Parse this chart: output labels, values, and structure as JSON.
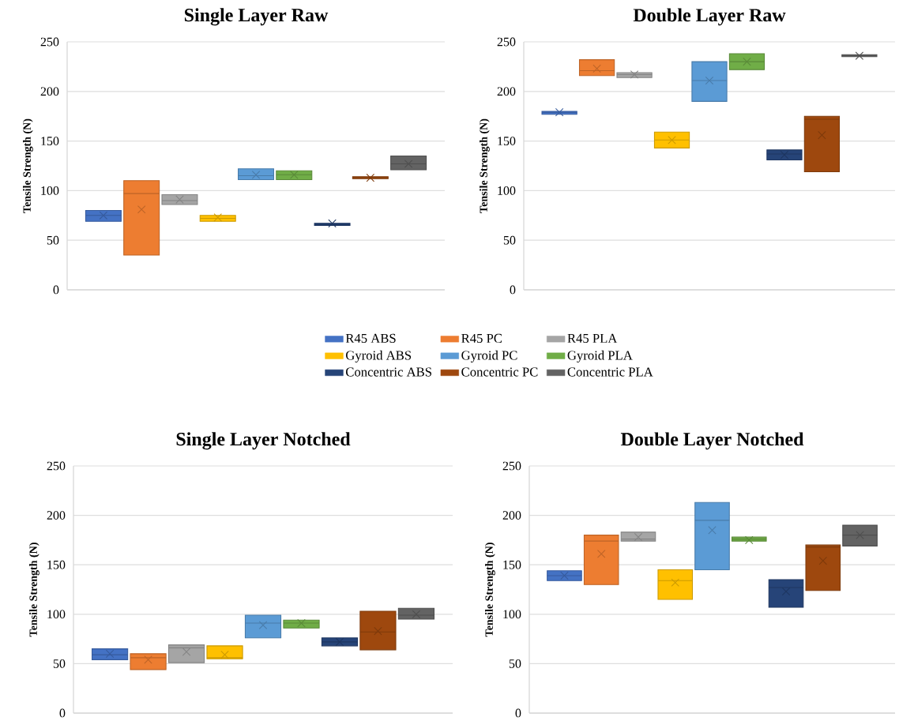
{
  "chart_data": [
    {
      "type": "box",
      "title": "Single Layer Raw",
      "ylabel": "Tensile Strength (N)",
      "categories": [
        null
      ],
      "ylim": [
        0,
        250
      ],
      "yticks": [
        0,
        50,
        100,
        150,
        200,
        250
      ],
      "grid": "y",
      "legend": "bottom",
      "series": [
        {
          "name": "R45 ABS",
          "color": "#4472c4",
          "boxes": [
            {
              "low": 69,
              "q1": 69,
              "median": 75,
              "q3": 80,
              "high": 80,
              "mean": 75
            }
          ]
        },
        {
          "name": "R45 PC",
          "color": "#ed7d31",
          "boxes": [
            {
              "low": 35,
              "q1": 35,
              "median": 97,
              "q3": 110,
              "high": 110,
              "mean": 81
            }
          ]
        },
        {
          "name": "R45 PLA",
          "color": "#a5a5a5",
          "boxes": [
            {
              "low": 86,
              "q1": 86,
              "median": 90,
              "q3": 96,
              "high": 96,
              "mean": 91
            }
          ]
        },
        {
          "name": "Gyroid ABS",
          "color": "#ffc000",
          "boxes": [
            {
              "low": 69,
              "q1": 69,
              "median": 72,
              "q3": 75,
              "high": 75,
              "mean": 73
            }
          ]
        },
        {
          "name": "Gyroid PC",
          "color": "#5b9bd5",
          "boxes": [
            {
              "low": 111,
              "q1": 111,
              "median": 115,
              "q3": 122,
              "high": 122,
              "mean": 116
            }
          ]
        },
        {
          "name": "Gyroid PLA",
          "color": "#70ad47",
          "boxes": [
            {
              "low": 111,
              "q1": 111,
              "median": 116,
              "q3": 120,
              "high": 120,
              "mean": 116
            }
          ]
        },
        {
          "name": "Concentric ABS",
          "color": "#264478",
          "boxes": [
            {
              "low": 65,
              "q1": 65,
              "median": 66,
              "q3": 67,
              "high": 67,
              "mean": 67
            }
          ]
        },
        {
          "name": "Concentric PC",
          "color": "#9e480e",
          "boxes": [
            {
              "low": 112,
              "q1": 112,
              "median": 113,
              "q3": 114,
              "high": 114,
              "mean": 113
            }
          ]
        },
        {
          "name": "Concentric PLA",
          "color": "#636363",
          "boxes": [
            {
              "low": 121,
              "q1": 121,
              "median": 127,
              "q3": 135,
              "high": 135,
              "mean": 127
            }
          ]
        }
      ]
    },
    {
      "type": "box",
      "title": "Double Layer Raw",
      "ylabel": "Tensile Strength (N)",
      "categories": [
        null
      ],
      "ylim": [
        0,
        250
      ],
      "yticks": [
        0,
        50,
        100,
        150,
        200,
        250
      ],
      "grid": "y",
      "series": [
        {
          "color": "#4472c4",
          "boxes": [
            {
              "low": 177,
              "q1": 177,
              "median": 179,
              "q3": 180,
              "high": 180,
              "mean": 179
            }
          ]
        },
        {
          "color": "#ed7d31",
          "boxes": [
            {
              "low": 216,
              "q1": 216,
              "median": 221,
              "q3": 232,
              "high": 232,
              "mean": 223
            }
          ]
        },
        {
          "color": "#a5a5a5",
          "boxes": [
            {
              "low": 214,
              "q1": 214,
              "median": 217,
              "q3": 219,
              "high": 219,
              "mean": 217
            }
          ]
        },
        {
          "color": "#ffc000",
          "boxes": [
            {
              "low": 143,
              "q1": 143,
              "median": 151,
              "q3": 159,
              "high": 159,
              "mean": 151
            }
          ]
        },
        {
          "color": "#5b9bd5",
          "boxes": [
            {
              "low": 190,
              "q1": 190,
              "median": 211,
              "q3": 230,
              "high": 230,
              "mean": 211
            }
          ]
        },
        {
          "color": "#70ad47",
          "boxes": [
            {
              "low": 222,
              "q1": 222,
              "median": 230,
              "q3": 238,
              "high": 238,
              "mean": 230
            }
          ]
        },
        {
          "color": "#264478",
          "boxes": [
            {
              "low": 131,
              "q1": 131,
              "median": 137,
              "q3": 141,
              "high": 141,
              "mean": 136
            }
          ]
        },
        {
          "color": "#9e480e",
          "boxes": [
            {
              "low": 119,
              "q1": 119,
              "median": 172,
              "q3": 175,
              "high": 175,
              "mean": 156
            }
          ]
        },
        {
          "color": "#636363",
          "boxes": [
            {
              "low": 235,
              "q1": 235,
              "median": 236,
              "q3": 237,
              "high": 237,
              "mean": 236
            }
          ]
        }
      ]
    },
    {
      "type": "box",
      "title": "Single Layer Notched",
      "ylabel": "Tensile Strength (N)",
      "categories": [
        null
      ],
      "ylim": [
        0,
        250
      ],
      "yticks": [
        0,
        50,
        100,
        150,
        200,
        250
      ],
      "grid": "y",
      "series": [
        {
          "color": "#4472c4",
          "boxes": [
            {
              "low": 54,
              "q1": 54,
              "median": 59,
              "q3": 65,
              "high": 65,
              "mean": 60
            }
          ]
        },
        {
          "color": "#ed7d31",
          "boxes": [
            {
              "low": 44,
              "q1": 44,
              "median": 56,
              "q3": 60,
              "high": 60,
              "mean": 54
            }
          ]
        },
        {
          "color": "#a5a5a5",
          "boxes": [
            {
              "low": 51,
              "q1": 51,
              "median": 66,
              "q3": 69,
              "high": 69,
              "mean": 62
            }
          ]
        },
        {
          "color": "#ffc000",
          "boxes": [
            {
              "low": 55,
              "q1": 55,
              "median": 56,
              "q3": 68,
              "high": 68,
              "mean": 59
            }
          ]
        },
        {
          "color": "#5b9bd5",
          "boxes": [
            {
              "low": 76,
              "q1": 76,
              "median": 91,
              "q3": 99,
              "high": 99,
              "mean": 89
            }
          ]
        },
        {
          "color": "#70ad47",
          "boxes": [
            {
              "low": 86,
              "q1": 86,
              "median": 91,
              "q3": 94,
              "high": 94,
              "mean": 91
            }
          ]
        },
        {
          "color": "#264478",
          "boxes": [
            {
              "low": 68,
              "q1": 68,
              "median": 72,
              "q3": 76,
              "high": 76,
              "mean": 72
            }
          ]
        },
        {
          "color": "#9e480e",
          "boxes": [
            {
              "low": 64,
              "q1": 64,
              "median": 82,
              "q3": 103,
              "high": 103,
              "mean": 83
            }
          ]
        },
        {
          "color": "#636363",
          "boxes": [
            {
              "low": 95,
              "q1": 95,
              "median": 99,
              "q3": 106,
              "high": 106,
              "mean": 100
            }
          ]
        }
      ]
    },
    {
      "type": "box",
      "title": "Double Layer Notched",
      "ylabel": "Tensile Strength (N)",
      "categories": [
        null
      ],
      "ylim": [
        0,
        250
      ],
      "yticks": [
        0,
        50,
        100,
        150,
        200,
        250
      ],
      "grid": "y",
      "series": [
        {
          "color": "#4472c4",
          "boxes": [
            {
              "low": 134,
              "q1": 134,
              "median": 139,
              "q3": 144,
              "high": 144,
              "mean": 139
            }
          ]
        },
        {
          "color": "#ed7d31",
          "boxes": [
            {
              "low": 130,
              "q1": 130,
              "median": 174,
              "q3": 180,
              "high": 180,
              "mean": 161
            }
          ]
        },
        {
          "color": "#a5a5a5",
          "boxes": [
            {
              "low": 174,
              "q1": 174,
              "median": 176,
              "q3": 183,
              "high": 183,
              "mean": 178
            }
          ]
        },
        {
          "color": "#ffc000",
          "boxes": [
            {
              "low": 115,
              "q1": 115,
              "median": 134,
              "q3": 145,
              "high": 145,
              "mean": 132
            }
          ]
        },
        {
          "color": "#5b9bd5",
          "boxes": [
            {
              "low": 145,
              "q1": 145,
              "median": 195,
              "q3": 213,
              "high": 213,
              "mean": 185
            }
          ]
        },
        {
          "color": "#70ad47",
          "boxes": [
            {
              "low": 174,
              "q1": 174,
              "median": 176,
              "q3": 178,
              "high": 178,
              "mean": 175
            }
          ]
        },
        {
          "color": "#264478",
          "boxes": [
            {
              "low": 107,
              "q1": 107,
              "median": 127,
              "q3": 135,
              "high": 135,
              "mean": 123
            }
          ]
        },
        {
          "color": "#9e480e",
          "boxes": [
            {
              "low": 124,
              "q1": 124,
              "median": 168,
              "q3": 170,
              "high": 170,
              "mean": 154
            }
          ]
        },
        {
          "color": "#636363",
          "boxes": [
            {
              "low": 169,
              "q1": 169,
              "median": 180,
              "q3": 190,
              "high": 190,
              "mean": 180
            }
          ]
        }
      ]
    }
  ]
}
